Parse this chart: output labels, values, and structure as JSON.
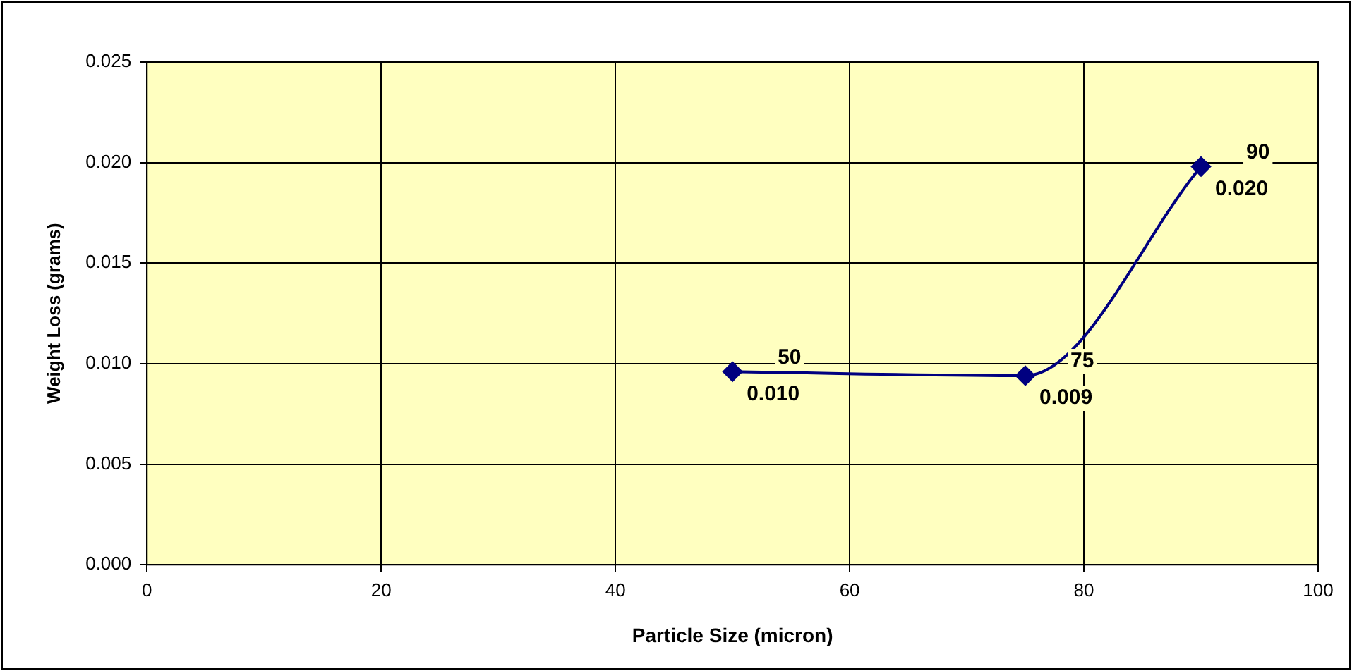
{
  "chart_data": {
    "type": "line",
    "xlabel": "Particle Size (micron)",
    "ylabel": "Weight Loss (grams)",
    "x": [
      50,
      75,
      90
    ],
    "series": [
      {
        "color": "#000080",
        "values": [
          0.0096,
          0.0094,
          0.0198
        ],
        "value_labels": [
          "50\n0.010",
          "75\n0.009",
          "90\n0.020"
        ]
      }
    ],
    "xlim": [
      0,
      100
    ],
    "xticks": [
      0,
      20,
      40,
      60,
      80,
      100
    ],
    "ylim": [
      0,
      0.025
    ],
    "yticks": [
      {
        "value": 0,
        "label": "0.000"
      },
      {
        "value": 0.005,
        "label": "0.005"
      },
      {
        "value": 0.01,
        "label": "0.010"
      },
      {
        "value": 0.015,
        "label": "0.015"
      },
      {
        "value": 0.02,
        "label": "0.020"
      },
      {
        "value": 0.025,
        "label": "0.025"
      }
    ],
    "grid": true,
    "legend": false,
    "marker": "diamond",
    "line_style": "solid"
  }
}
